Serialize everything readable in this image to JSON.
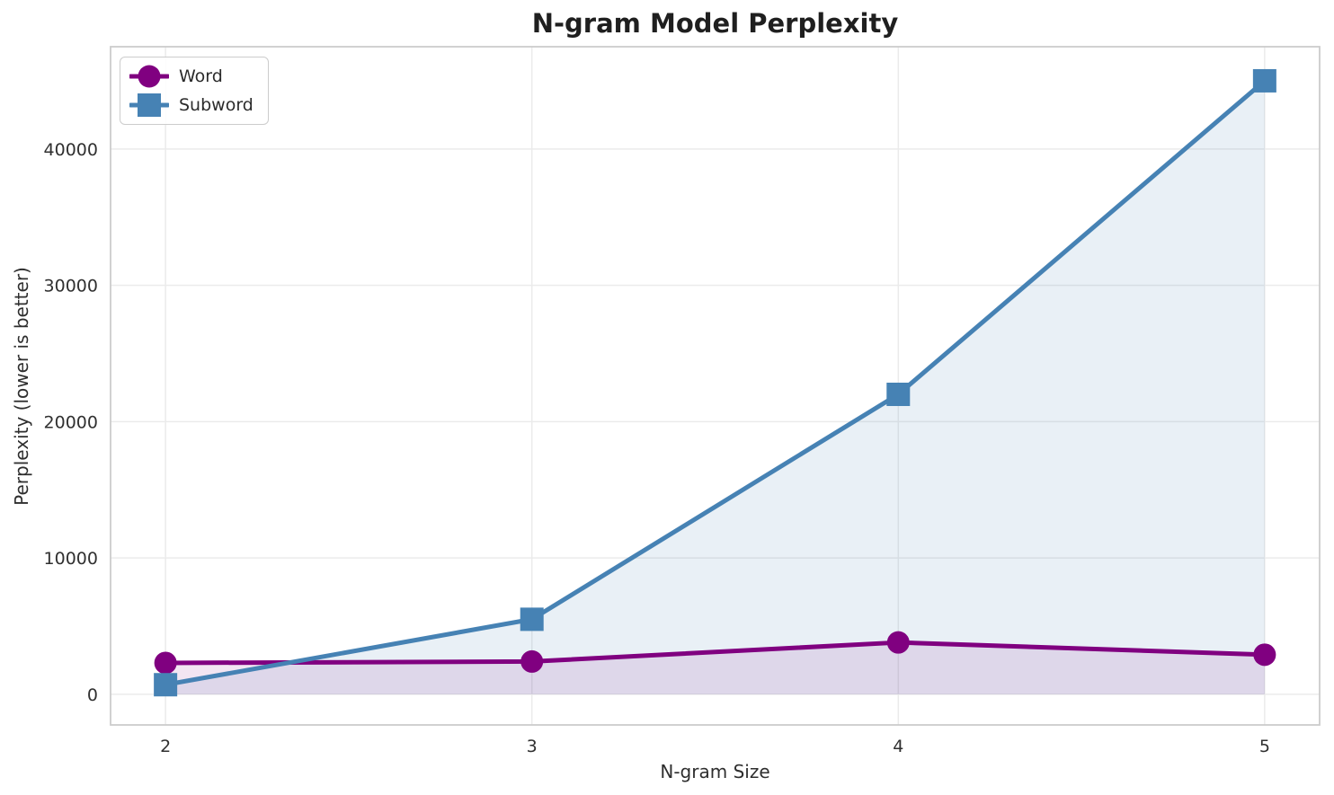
{
  "chart_data": {
    "type": "line",
    "title": "N-gram Model Perplexity",
    "xlabel": "N-gram Size",
    "ylabel": "Perplexity (lower is better)",
    "x": [
      2,
      3,
      4,
      5
    ],
    "series": [
      {
        "name": "Word",
        "marker": "circle",
        "color": "#800080",
        "fill_color": "rgba(128,0,128,0.10)",
        "values": [
          2300,
          2400,
          3800,
          2900
        ]
      },
      {
        "name": "Subword",
        "marker": "square",
        "color": "#4682B4",
        "fill_color": "rgba(70,130,180,0.12)",
        "values": [
          700,
          5500,
          22000,
          45000
        ]
      }
    ],
    "x_ticks": [
      2,
      3,
      4,
      5
    ],
    "y_ticks": [
      0,
      10000,
      20000,
      30000,
      40000
    ],
    "xlim": [
      1.85,
      5.15
    ],
    "ylim": [
      -2250,
      47500
    ],
    "grid": true,
    "legend_position": "upper left",
    "grid_color": "#ebebeb",
    "spine_color": "#cccccc",
    "tick_color": "#303030"
  }
}
